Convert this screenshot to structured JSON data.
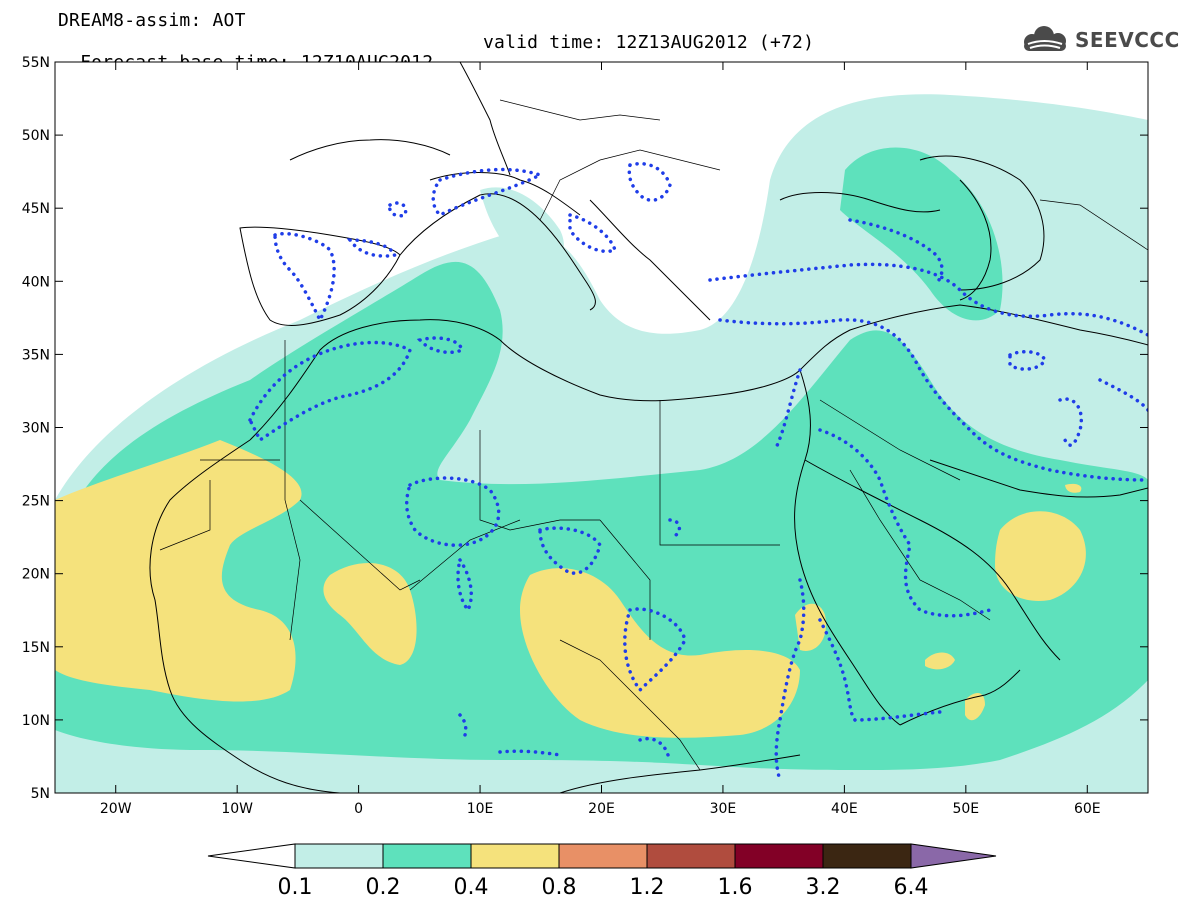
{
  "header": {
    "title": "DREAM8-assim: AOT",
    "base_time": "Forecast base time: 12Z10AUG2012",
    "valid_time": "valid time: 12Z13AUG2012 (+72)"
  },
  "logo": {
    "text": "SEEVCCC",
    "icon": "cloud-icon"
  },
  "map": {
    "region": "Europe, North Africa, Middle East",
    "lon_range": [
      -25,
      65
    ],
    "lat_range": [
      5,
      55
    ],
    "lat_labels": [
      "55N",
      "50N",
      "45N",
      "40N",
      "35N",
      "30N",
      "25N",
      "20N",
      "15N",
      "10N",
      "5N"
    ],
    "lon_labels": [
      "20W",
      "10W",
      "0",
      "10E",
      "20E",
      "30E",
      "40E",
      "50E",
      "60E"
    ]
  },
  "colorbar": {
    "labels": [
      "0.1",
      "0.2",
      "0.4",
      "0.8",
      "1.2",
      "1.6",
      "3.2",
      "6.4"
    ],
    "colors": [
      "#ffffff",
      "#c2eee7",
      "#5ee1bc",
      "#f5e27c",
      "#e89066",
      "#b04c3e",
      "#820026",
      "#3b2612",
      "#8a68a8"
    ]
  },
  "colors": {
    "aot_0_1": "#c2eee7",
    "aot_0_2": "#5ee1bc",
    "aot_0_4": "#f5e27c",
    "coast": "#000000",
    "dotted_contour": "#1f3de8"
  }
}
